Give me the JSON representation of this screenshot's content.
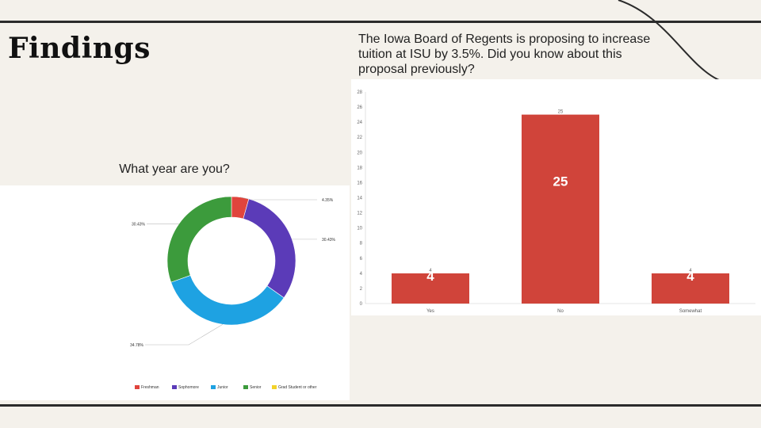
{
  "slide": {
    "title": "Findings"
  },
  "colors": {
    "background": "#f4f1eb",
    "bar": "#d0443a",
    "freshman": "#e0443c",
    "sophomore": "#5b3bb8",
    "junior": "#1ea2e2",
    "senior": "#3c9b3c",
    "grad": "#f2d22a"
  },
  "bar_question": "The Iowa Board of Regents is proposing to increase tuition at ISU by 3.5%. Did you know about this proposal previously?",
  "pie_question": "What year are you?",
  "chart_data": [
    {
      "type": "bar",
      "title": "The Iowa Board of Regents is proposing to increase tuition at ISU by 3.5%. Did you know about this proposal previously?",
      "categories": [
        "Yes",
        "No",
        "Somewhat"
      ],
      "values": [
        4,
        25,
        4
      ],
      "value_labels": [
        "4",
        "25",
        "4"
      ],
      "ylim": [
        0,
        28
      ],
      "yticks": [
        "0",
        "2",
        "4",
        "6",
        "8",
        "10",
        "12",
        "14",
        "16",
        "18",
        "20",
        "22",
        "24",
        "26",
        "28"
      ],
      "xlabel": "",
      "ylabel": "",
      "grid": false
    },
    {
      "type": "pie",
      "variant": "donut",
      "title": "What year are you?",
      "categories": [
        "Freshman",
        "Sophomore",
        "Junior",
        "Senior",
        "Grad Student or other"
      ],
      "values": [
        4.35,
        30.43,
        34.78,
        30.43,
        0
      ],
      "labels": [
        "4.35%",
        "30.43%",
        "34.78%",
        "30.43%",
        ""
      ],
      "legend": "bottom"
    }
  ]
}
